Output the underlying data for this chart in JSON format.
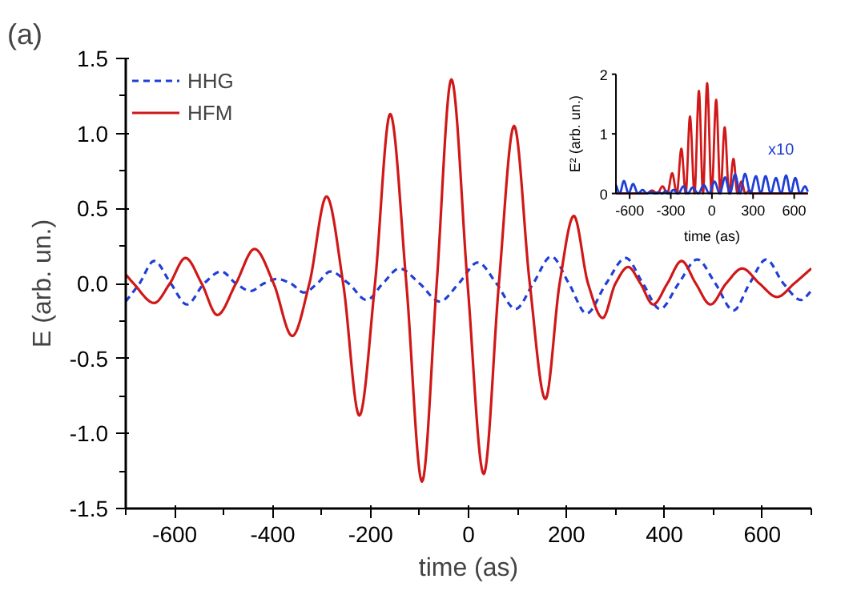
{
  "chart_data": [
    {
      "type": "line",
      "xlabel": "time (as)",
      "ylabel": "E (arb. un.)",
      "xlim": [
        -700,
        700
      ],
      "xticks": [
        -600,
        -400,
        -200,
        0,
        200,
        400,
        600
      ],
      "ylim": [
        -1.5,
        1.5
      ],
      "yticks": [
        {
          "value": -1.5,
          "label": "-1.5"
        },
        {
          "value": -1.0,
          "label": "-1.0"
        },
        {
          "value": -0.5,
          "label": "-0.5"
        },
        {
          "value": 0.0,
          "label": "0.0"
        },
        {
          "value": 0.5,
          "label": "0.5"
        },
        {
          "value": 1.0,
          "label": "1.0"
        },
        {
          "value": 1.5,
          "label": "1.5"
        }
      ],
      "legend": "top left",
      "annotations": [
        "(a)"
      ],
      "series": [
        {
          "name": "HHG",
          "color": "#1f3fd6",
          "line_style": "dashed",
          "x": [
            -700,
            -672,
            -642,
            -608,
            -575,
            -540,
            -505,
            -475,
            -445,
            -418,
            -391,
            -363,
            -336,
            -309,
            -282,
            -245,
            -208,
            -175,
            -141,
            -100,
            -59,
            -20,
            19,
            57,
            96,
            132,
            169,
            205,
            241,
            281,
            321,
            356,
            391,
            429,
            467,
            504,
            541,
            574,
            608,
            643,
            679,
            700
          ],
          "values": [
            -0.12,
            0,
            0.15,
            0,
            -0.14,
            0,
            0.08,
            0,
            -0.05,
            0,
            0.03,
            0,
            -0.06,
            0,
            0.08,
            0,
            -0.11,
            0,
            0.1,
            0,
            -0.12,
            0,
            0.14,
            0,
            -0.17,
            0,
            0.18,
            0,
            -0.2,
            0,
            0.17,
            0,
            -0.17,
            0,
            0.16,
            0,
            -0.18,
            0,
            0.16,
            0,
            -0.11,
            -0.05
          ]
        },
        {
          "name": "HFM",
          "color": "#d01818",
          "line_style": "solid",
          "x": [
            -700,
            -684,
            -642,
            -610,
            -578,
            -545,
            -513,
            -475,
            -437,
            -398,
            -360,
            -325,
            -290,
            -256,
            -223,
            -191,
            -160,
            -127,
            -95,
            -65,
            -35,
            -2,
            31,
            62,
            93,
            125,
            157,
            186,
            215,
            244,
            274,
            300,
            326,
            351,
            377,
            406,
            435,
            464,
            494,
            526,
            559,
            594,
            630,
            665,
            700
          ],
          "values": [
            0.06,
            0,
            -0.13,
            0,
            0.17,
            0,
            -0.21,
            0,
            0.23,
            0,
            -0.35,
            0,
            0.58,
            0,
            -0.88,
            0,
            1.13,
            0,
            -1.32,
            0,
            1.36,
            0,
            -1.27,
            0,
            1.05,
            0,
            -0.77,
            0,
            0.45,
            0,
            -0.23,
            0,
            0.11,
            0,
            -0.14,
            0,
            0.15,
            0,
            -0.14,
            0,
            0.1,
            0,
            -0.09,
            0,
            0.1
          ]
        }
      ]
    },
    {
      "type": "line",
      "xlabel": "time (as)",
      "ylabel": "E² (arb. un.)",
      "xlim": [
        -700,
        700
      ],
      "xticks": [
        -600,
        -300,
        0,
        300,
        600
      ],
      "ylim": [
        0,
        2
      ],
      "yticks": [
        0,
        1,
        2
      ],
      "annotations": [
        "x10"
      ],
      "series": [
        {
          "color": "#d01818",
          "x": [
            -700,
            -475,
            -437,
            -398,
            -360,
            -325,
            -290,
            -256,
            -223,
            -191,
            -160,
            -127,
            -95,
            -65,
            -35,
            -2,
            31,
            62,
            93,
            125,
            157,
            186,
            215,
            244,
            274,
            300,
            700
          ],
          "values": [
            0,
            0,
            0.05,
            0,
            0.12,
            0,
            0.34,
            0,
            0.75,
            0,
            1.29,
            0,
            1.72,
            0,
            1.85,
            0,
            1.57,
            0,
            1.11,
            0,
            0.58,
            0,
            0.2,
            0,
            0.05,
            0,
            0
          ]
        },
        {
          "color": "#1f3fd6",
          "x": [
            -700,
            -672,
            -642,
            -608,
            -575,
            -540,
            -505,
            -475,
            -445,
            -418,
            -391,
            -363,
            -336,
            -309,
            -282,
            -245,
            -208,
            -175,
            -141,
            -100,
            -59,
            -20,
            19,
            57,
            96,
            132,
            169,
            205,
            241,
            281,
            321,
            356,
            391,
            429,
            467,
            504,
            541,
            574,
            608,
            643,
            679,
            700
          ],
          "values": [
            0.14,
            0,
            0.21,
            0,
            0.16,
            0,
            0.06,
            0,
            0.03,
            0,
            0.02,
            0,
            0.04,
            0,
            0.06,
            0,
            0.12,
            0,
            0.1,
            0,
            0.14,
            0,
            0.2,
            0,
            0.27,
            0,
            0.32,
            0,
            0.33,
            0,
            0.29,
            0,
            0.29,
            0,
            0.26,
            0,
            0.3,
            0,
            0.26,
            0,
            0.12,
            0.03
          ]
        }
      ]
    }
  ]
}
